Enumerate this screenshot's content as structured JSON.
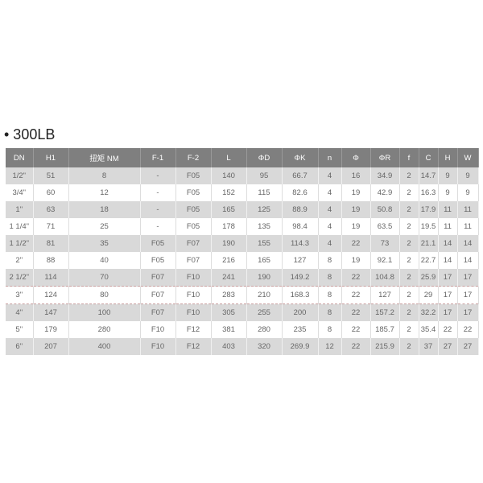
{
  "title": "• 300LB",
  "table": {
    "headers": [
      "DN",
      "H1",
      "扭矩 NM",
      "F-1",
      "F-2",
      "L",
      "ΦD",
      "ΦK",
      "n",
      "Φ",
      "ΦR",
      "f",
      "C",
      "H",
      "W"
    ],
    "rows": [
      [
        "1/2\"",
        "51",
        "8",
        "-",
        "F05",
        "140",
        "95",
        "66.7",
        "4",
        "16",
        "34.9",
        "2",
        "14.7",
        "9",
        "9"
      ],
      [
        "3/4\"",
        "60",
        "12",
        "-",
        "F05",
        "152",
        "115",
        "82.6",
        "4",
        "19",
        "42.9",
        "2",
        "16.3",
        "9",
        "9"
      ],
      [
        "1\"",
        "63",
        "18",
        "-",
        "F05",
        "165",
        "125",
        "88.9",
        "4",
        "19",
        "50.8",
        "2",
        "17.9",
        "11",
        "11"
      ],
      [
        "1 1/4\"",
        "71",
        "25",
        "-",
        "F05",
        "178",
        "135",
        "98.4",
        "4",
        "19",
        "63.5",
        "2",
        "19.5",
        "11",
        "11"
      ],
      [
        "1 1/2\"",
        "81",
        "35",
        "F05",
        "F07",
        "190",
        "155",
        "114.3",
        "4",
        "22",
        "73",
        "2",
        "21.1",
        "14",
        "14"
      ],
      [
        "2\"",
        "88",
        "40",
        "F05",
        "F07",
        "216",
        "165",
        "127",
        "8",
        "19",
        "92.1",
        "2",
        "22.7",
        "14",
        "14"
      ],
      [
        "2 1/2\"",
        "114",
        "70",
        "F07",
        "F10",
        "241",
        "190",
        "149.2",
        "8",
        "22",
        "104.8",
        "2",
        "25.9",
        "17",
        "17"
      ],
      [
        "3\"",
        "124",
        "80",
        "F07",
        "F10",
        "283",
        "210",
        "168.3",
        "8",
        "22",
        "127",
        "2",
        "29",
        "17",
        "17"
      ],
      [
        "4\"",
        "147",
        "100",
        "F07",
        "F10",
        "305",
        "255",
        "200",
        "8",
        "22",
        "157.2",
        "2",
        "32.2",
        "17",
        "17"
      ],
      [
        "5\"",
        "179",
        "280",
        "F10",
        "F12",
        "381",
        "280",
        "235",
        "8",
        "22",
        "185.7",
        "2",
        "35.4",
        "22",
        "22"
      ],
      [
        "6\"",
        "207",
        "400",
        "F10",
        "F12",
        "403",
        "320",
        "269.9",
        "12",
        "22",
        "215.9",
        "2",
        "37",
        "27",
        "27"
      ]
    ]
  }
}
